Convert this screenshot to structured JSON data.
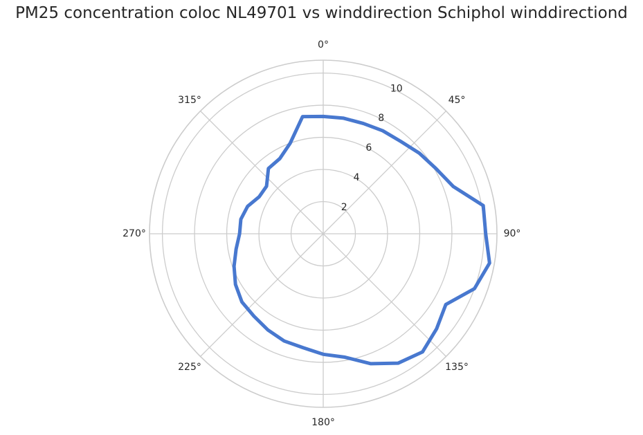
{
  "title": "PM25 concentration coloc NL49701 vs winddirection Schiphol winddirectiond",
  "colors": {
    "series": "#4878cf",
    "grid": "#cccccc",
    "text": "#262626",
    "background": "#ffffff"
  },
  "chart_data": {
    "type": "line",
    "projection": "polar",
    "title": "PM25 concentration coloc NL49701 vs winddirection Schiphol winddirectiond",
    "theta_direction": "clockwise",
    "theta_zero_location": "N",
    "theta_tick_labels": [
      "0°",
      "45°",
      "90°",
      "135°",
      "180°",
      "225°",
      "270°",
      "315°"
    ],
    "theta_ticks": [
      0,
      45,
      90,
      135,
      180,
      225,
      270,
      315
    ],
    "r_ticks": [
      2,
      4,
      6,
      8,
      10
    ],
    "r_tick_labels": [
      "2",
      "4",
      "6",
      "8",
      "10"
    ],
    "rlim": [
      0,
      10.8
    ],
    "grid": true,
    "legend": "none",
    "series": [
      {
        "x": [
          0,
          10,
          20,
          30,
          40,
          50,
          60,
          70,
          80,
          90,
          100,
          110,
          120,
          130,
          140,
          150,
          160,
          170,
          180,
          190,
          200,
          210,
          220,
          230,
          240,
          250,
          260,
          270,
          280,
          290,
          300,
          310,
          320,
          330,
          340,
          350
        ],
        "values": [
          7.3,
          7.3,
          7.3,
          7.4,
          7.5,
          7.8,
          8.1,
          8.6,
          10.1,
          10.1,
          10.5,
          10.0,
          8.8,
          9.2,
          9.6,
          9.3,
          8.6,
          7.8,
          7.5,
          7.2,
          7.1,
          6.9,
          6.7,
          6.6,
          6.3,
          5.9,
          5.5,
          5.2,
          5.2,
          5.0,
          4.6,
          4.6,
          5.3,
          5.4,
          6.0,
          7.4
        ]
      }
    ]
  }
}
